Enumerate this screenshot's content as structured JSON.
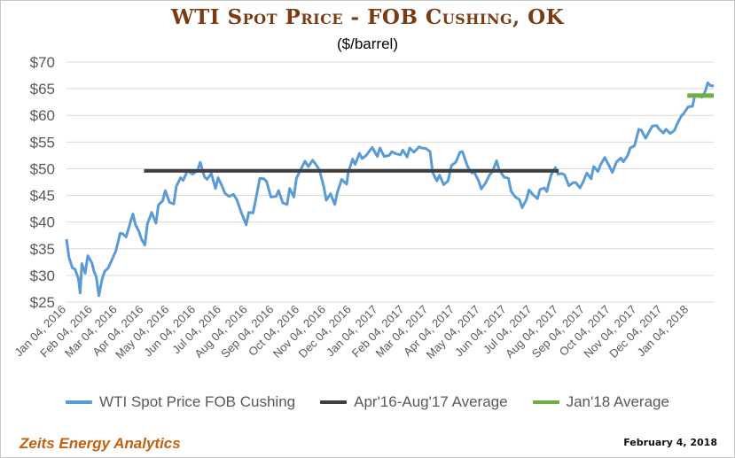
{
  "colors": {
    "title": "#7a3b12",
    "wti_line": "#5b9bd5",
    "avg_line": "#404040",
    "jan_line": "#70ad47",
    "axis_text": "#595959",
    "brand": "#c5600f"
  },
  "chart_data": {
    "type": "line",
    "title": "WTI Spot Price - FOB Cushing, OK",
    "subtitle": "($/barrel)",
    "ylim": [
      25,
      70
    ],
    "yticks": [
      25,
      30,
      35,
      40,
      45,
      50,
      55,
      60,
      65,
      70
    ],
    "ytick_labels": [
      "$25",
      "$30",
      "$35",
      "$40",
      "$45",
      "$50",
      "$55",
      "$60",
      "$65",
      "$70"
    ],
    "xlim": [
      "2016-01-04",
      "2018-02-02"
    ],
    "xticks": [
      "2016-01-04",
      "2016-02-04",
      "2016-03-04",
      "2016-04-04",
      "2016-05-04",
      "2016-06-04",
      "2016-07-04",
      "2016-08-04",
      "2016-09-04",
      "2016-10-04",
      "2016-11-04",
      "2016-12-04",
      "2017-01-04",
      "2017-02-04",
      "2017-03-04",
      "2017-04-04",
      "2017-05-04",
      "2017-06-04",
      "2017-07-04",
      "2017-08-04",
      "2017-09-04",
      "2017-10-04",
      "2017-11-04",
      "2017-12-04",
      "2018-01-04"
    ],
    "xtick_labels": [
      "Jan 04, 2016",
      "Feb 04, 2016",
      "Mar 04, 2016",
      "Apr 04, 2016",
      "May 04, 2016",
      "Jun 04, 2016",
      "Jul 04, 2016",
      "Aug 04, 2016",
      "Sep 04, 2016",
      "Oct 04, 2016",
      "Nov 04, 2016",
      "Dec 04, 2016",
      "Jan 04, 2017",
      "Feb 04, 2017",
      "Mar 04, 2017",
      "Apr 04, 2017",
      "May 04, 2017",
      "Jun 04, 2017",
      "Jul 04, 2017",
      "Aug 04, 2017",
      "Sep 04, 2017",
      "Oct 04, 2017",
      "Nov 04, 2017",
      "Dec 04, 2017",
      "Jan 04, 2018"
    ],
    "grid": "horizontal",
    "legend_position": "bottom",
    "series": [
      {
        "name": "WTI Spot Price FOB Cushing",
        "color": "#5b9bd5",
        "points": [
          [
            "2016-01-04",
            36.8
          ],
          [
            "2016-01-07",
            33.3
          ],
          [
            "2016-01-11",
            31.4
          ],
          [
            "2016-01-14",
            31.2
          ],
          [
            "2016-01-18",
            29.4
          ],
          [
            "2016-01-20",
            26.7
          ],
          [
            "2016-01-22",
            32.2
          ],
          [
            "2016-01-26",
            30.4
          ],
          [
            "2016-01-29",
            33.7
          ],
          [
            "2016-02-03",
            32.3
          ],
          [
            "2016-02-05",
            30.9
          ],
          [
            "2016-02-08",
            29.7
          ],
          [
            "2016-02-11",
            26.2
          ],
          [
            "2016-02-15",
            29.4
          ],
          [
            "2016-02-18",
            30.8
          ],
          [
            "2016-02-22",
            31.4
          ],
          [
            "2016-02-26",
            32.8
          ],
          [
            "2016-03-02",
            34.6
          ],
          [
            "2016-03-07",
            37.9
          ],
          [
            "2016-03-10",
            37.8
          ],
          [
            "2016-03-14",
            37.2
          ],
          [
            "2016-03-18",
            39.4
          ],
          [
            "2016-03-22",
            41.5
          ],
          [
            "2016-03-25",
            39.5
          ],
          [
            "2016-03-29",
            38.3
          ],
          [
            "2016-04-01",
            36.8
          ],
          [
            "2016-04-05",
            35.7
          ],
          [
            "2016-04-08",
            39.7
          ],
          [
            "2016-04-13",
            41.8
          ],
          [
            "2016-04-18",
            39.8
          ],
          [
            "2016-04-21",
            43.2
          ],
          [
            "2016-04-26",
            44.0
          ],
          [
            "2016-04-29",
            45.9
          ],
          [
            "2016-05-04",
            43.7
          ],
          [
            "2016-05-09",
            43.4
          ],
          [
            "2016-05-12",
            46.7
          ],
          [
            "2016-05-17",
            48.3
          ],
          [
            "2016-05-20",
            47.8
          ],
          [
            "2016-05-25",
            49.6
          ],
          [
            "2016-05-31",
            49.0
          ],
          [
            "2016-06-06",
            49.7
          ],
          [
            "2016-06-09",
            51.2
          ],
          [
            "2016-06-14",
            48.5
          ],
          [
            "2016-06-17",
            48.0
          ],
          [
            "2016-06-22",
            49.1
          ],
          [
            "2016-06-27",
            46.3
          ],
          [
            "2016-06-30",
            48.3
          ],
          [
            "2016-07-05",
            46.6
          ],
          [
            "2016-07-08",
            45.4
          ],
          [
            "2016-07-13",
            44.8
          ],
          [
            "2016-07-18",
            45.2
          ],
          [
            "2016-07-22",
            44.2
          ],
          [
            "2016-07-27",
            41.9
          ],
          [
            "2016-08-02",
            39.5
          ],
          [
            "2016-08-05",
            41.8
          ],
          [
            "2016-08-10",
            41.7
          ],
          [
            "2016-08-15",
            45.7
          ],
          [
            "2016-08-18",
            48.2
          ],
          [
            "2016-08-23",
            48.1
          ],
          [
            "2016-08-26",
            47.6
          ],
          [
            "2016-08-31",
            44.7
          ],
          [
            "2016-09-06",
            44.8
          ],
          [
            "2016-09-09",
            45.9
          ],
          [
            "2016-09-14",
            43.6
          ],
          [
            "2016-09-19",
            43.3
          ],
          [
            "2016-09-22",
            46.3
          ],
          [
            "2016-09-27",
            44.7
          ],
          [
            "2016-09-30",
            48.2
          ],
          [
            "2016-10-05",
            49.8
          ],
          [
            "2016-10-10",
            51.4
          ],
          [
            "2016-10-14",
            50.4
          ],
          [
            "2016-10-19",
            51.6
          ],
          [
            "2016-10-24",
            50.5
          ],
          [
            "2016-10-27",
            49.7
          ],
          [
            "2016-11-01",
            46.7
          ],
          [
            "2016-11-04",
            44.1
          ],
          [
            "2016-11-09",
            45.3
          ],
          [
            "2016-11-14",
            43.3
          ],
          [
            "2016-11-17",
            45.5
          ],
          [
            "2016-11-22",
            48.0
          ],
          [
            "2016-11-28",
            47.1
          ],
          [
            "2016-11-30",
            49.4
          ],
          [
            "2016-12-05",
            51.8
          ],
          [
            "2016-12-08",
            50.8
          ],
          [
            "2016-12-13",
            52.9
          ],
          [
            "2016-12-16",
            51.9
          ],
          [
            "2016-12-21",
            52.5
          ],
          [
            "2016-12-28",
            54.0
          ],
          [
            "2017-01-03",
            52.3
          ],
          [
            "2017-01-06",
            53.9
          ],
          [
            "2017-01-11",
            52.3
          ],
          [
            "2017-01-17",
            52.5
          ],
          [
            "2017-01-20",
            53.2
          ],
          [
            "2017-01-25",
            52.8
          ],
          [
            "2017-01-30",
            52.6
          ],
          [
            "2017-02-02",
            53.5
          ],
          [
            "2017-02-07",
            52.2
          ],
          [
            "2017-02-10",
            53.9
          ],
          [
            "2017-02-15",
            53.1
          ],
          [
            "2017-02-21",
            54.1
          ],
          [
            "2017-02-24",
            53.9
          ],
          [
            "2017-03-01",
            53.8
          ],
          [
            "2017-03-06",
            53.2
          ],
          [
            "2017-03-09",
            49.3
          ],
          [
            "2017-03-14",
            47.7
          ],
          [
            "2017-03-17",
            48.8
          ],
          [
            "2017-03-22",
            47.0
          ],
          [
            "2017-03-27",
            47.7
          ],
          [
            "2017-03-31",
            50.6
          ],
          [
            "2017-04-05",
            51.2
          ],
          [
            "2017-04-10",
            53.1
          ],
          [
            "2017-04-13",
            53.2
          ],
          [
            "2017-04-19",
            50.4
          ],
          [
            "2017-04-24",
            49.2
          ],
          [
            "2017-04-27",
            49.3
          ],
          [
            "2017-05-02",
            47.7
          ],
          [
            "2017-05-05",
            46.2
          ],
          [
            "2017-05-10",
            47.3
          ],
          [
            "2017-05-15",
            48.9
          ],
          [
            "2017-05-18",
            49.4
          ],
          [
            "2017-05-23",
            51.5
          ],
          [
            "2017-05-26",
            49.8
          ],
          [
            "2017-06-01",
            48.4
          ],
          [
            "2017-06-06",
            48.2
          ],
          [
            "2017-06-09",
            45.8
          ],
          [
            "2017-06-14",
            44.7
          ],
          [
            "2017-06-19",
            44.2
          ],
          [
            "2017-06-22",
            42.7
          ],
          [
            "2017-06-27",
            44.2
          ],
          [
            "2017-06-30",
            46.0
          ],
          [
            "2017-07-05",
            45.1
          ],
          [
            "2017-07-10",
            44.4
          ],
          [
            "2017-07-13",
            46.1
          ],
          [
            "2017-07-18",
            46.4
          ],
          [
            "2017-07-21",
            45.7
          ],
          [
            "2017-07-26",
            48.8
          ],
          [
            "2017-07-31",
            50.2
          ],
          [
            "2017-08-03",
            49.0
          ],
          [
            "2017-08-08",
            49.1
          ],
          [
            "2017-08-11",
            48.8
          ],
          [
            "2017-08-16",
            46.8
          ],
          [
            "2017-08-21",
            47.4
          ],
          [
            "2017-08-24",
            47.4
          ],
          [
            "2017-08-29",
            46.4
          ],
          [
            "2017-09-01",
            47.3
          ],
          [
            "2017-09-06",
            49.2
          ],
          [
            "2017-09-11",
            48.1
          ],
          [
            "2017-09-14",
            50.4
          ],
          [
            "2017-09-19",
            49.5
          ],
          [
            "2017-09-22",
            50.7
          ],
          [
            "2017-09-27",
            52.1
          ],
          [
            "2017-10-02",
            50.6
          ],
          [
            "2017-10-06",
            49.3
          ],
          [
            "2017-10-11",
            51.3
          ],
          [
            "2017-10-16",
            52.0
          ],
          [
            "2017-10-19",
            51.3
          ],
          [
            "2017-10-24",
            52.5
          ],
          [
            "2017-10-27",
            53.9
          ],
          [
            "2017-11-01",
            54.3
          ],
          [
            "2017-11-06",
            57.4
          ],
          [
            "2017-11-09",
            57.2
          ],
          [
            "2017-11-14",
            55.7
          ],
          [
            "2017-11-17",
            56.6
          ],
          [
            "2017-11-22",
            58.0
          ],
          [
            "2017-11-27",
            58.1
          ],
          [
            "2017-11-30",
            57.4
          ],
          [
            "2017-12-05",
            56.7
          ],
          [
            "2017-12-08",
            57.4
          ],
          [
            "2017-12-13",
            56.6
          ],
          [
            "2017-12-18",
            57.2
          ],
          [
            "2017-12-21",
            58.4
          ],
          [
            "2017-12-26",
            59.9
          ],
          [
            "2017-12-29",
            60.4
          ],
          [
            "2018-01-03",
            61.6
          ],
          [
            "2018-01-08",
            61.7
          ],
          [
            "2018-01-11",
            63.8
          ],
          [
            "2018-01-16",
            63.7
          ],
          [
            "2018-01-19",
            63.4
          ],
          [
            "2018-01-23",
            64.5
          ],
          [
            "2018-01-26",
            66.1
          ],
          [
            "2018-01-29",
            65.6
          ],
          [
            "2018-02-02",
            65.5
          ]
        ]
      },
      {
        "name": "Apr'16-Aug'17 Average",
        "color": "#404040",
        "points": [
          [
            "2016-04-04",
            49.6
          ],
          [
            "2017-08-04",
            49.6
          ]
        ]
      },
      {
        "name": "Jan'18 Average",
        "color": "#70ad47",
        "points": [
          [
            "2018-01-02",
            63.7
          ],
          [
            "2018-02-02",
            63.7
          ]
        ]
      }
    ]
  },
  "footer": {
    "brand": "Zeits Energy Analytics",
    "date": "February 4, 2018"
  }
}
